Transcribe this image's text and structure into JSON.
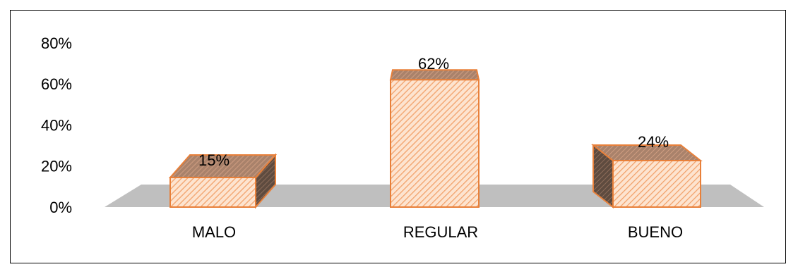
{
  "chart_data": {
    "type": "bar",
    "categories": [
      "MALO",
      "REGULAR",
      "BUENO"
    ],
    "values": [
      15,
      62,
      24
    ],
    "data_labels": [
      "15%",
      "62%",
      "24%"
    ],
    "y_ticks": [
      "0%",
      "20%",
      "40%",
      "60%",
      "80%"
    ],
    "ylim": [
      0,
      80
    ],
    "grid": false,
    "legend": "none",
    "style": "3d-hatched-bars"
  },
  "colors": {
    "bar_edge": "#e8803a",
    "bar_fill": "#fde4d0",
    "bar_hatch": "#f2a26b",
    "bar_side_dark": "#5a4a40",
    "bar_top": "#b0856a",
    "floor": "#bfbfbf",
    "frame": "#000000"
  }
}
